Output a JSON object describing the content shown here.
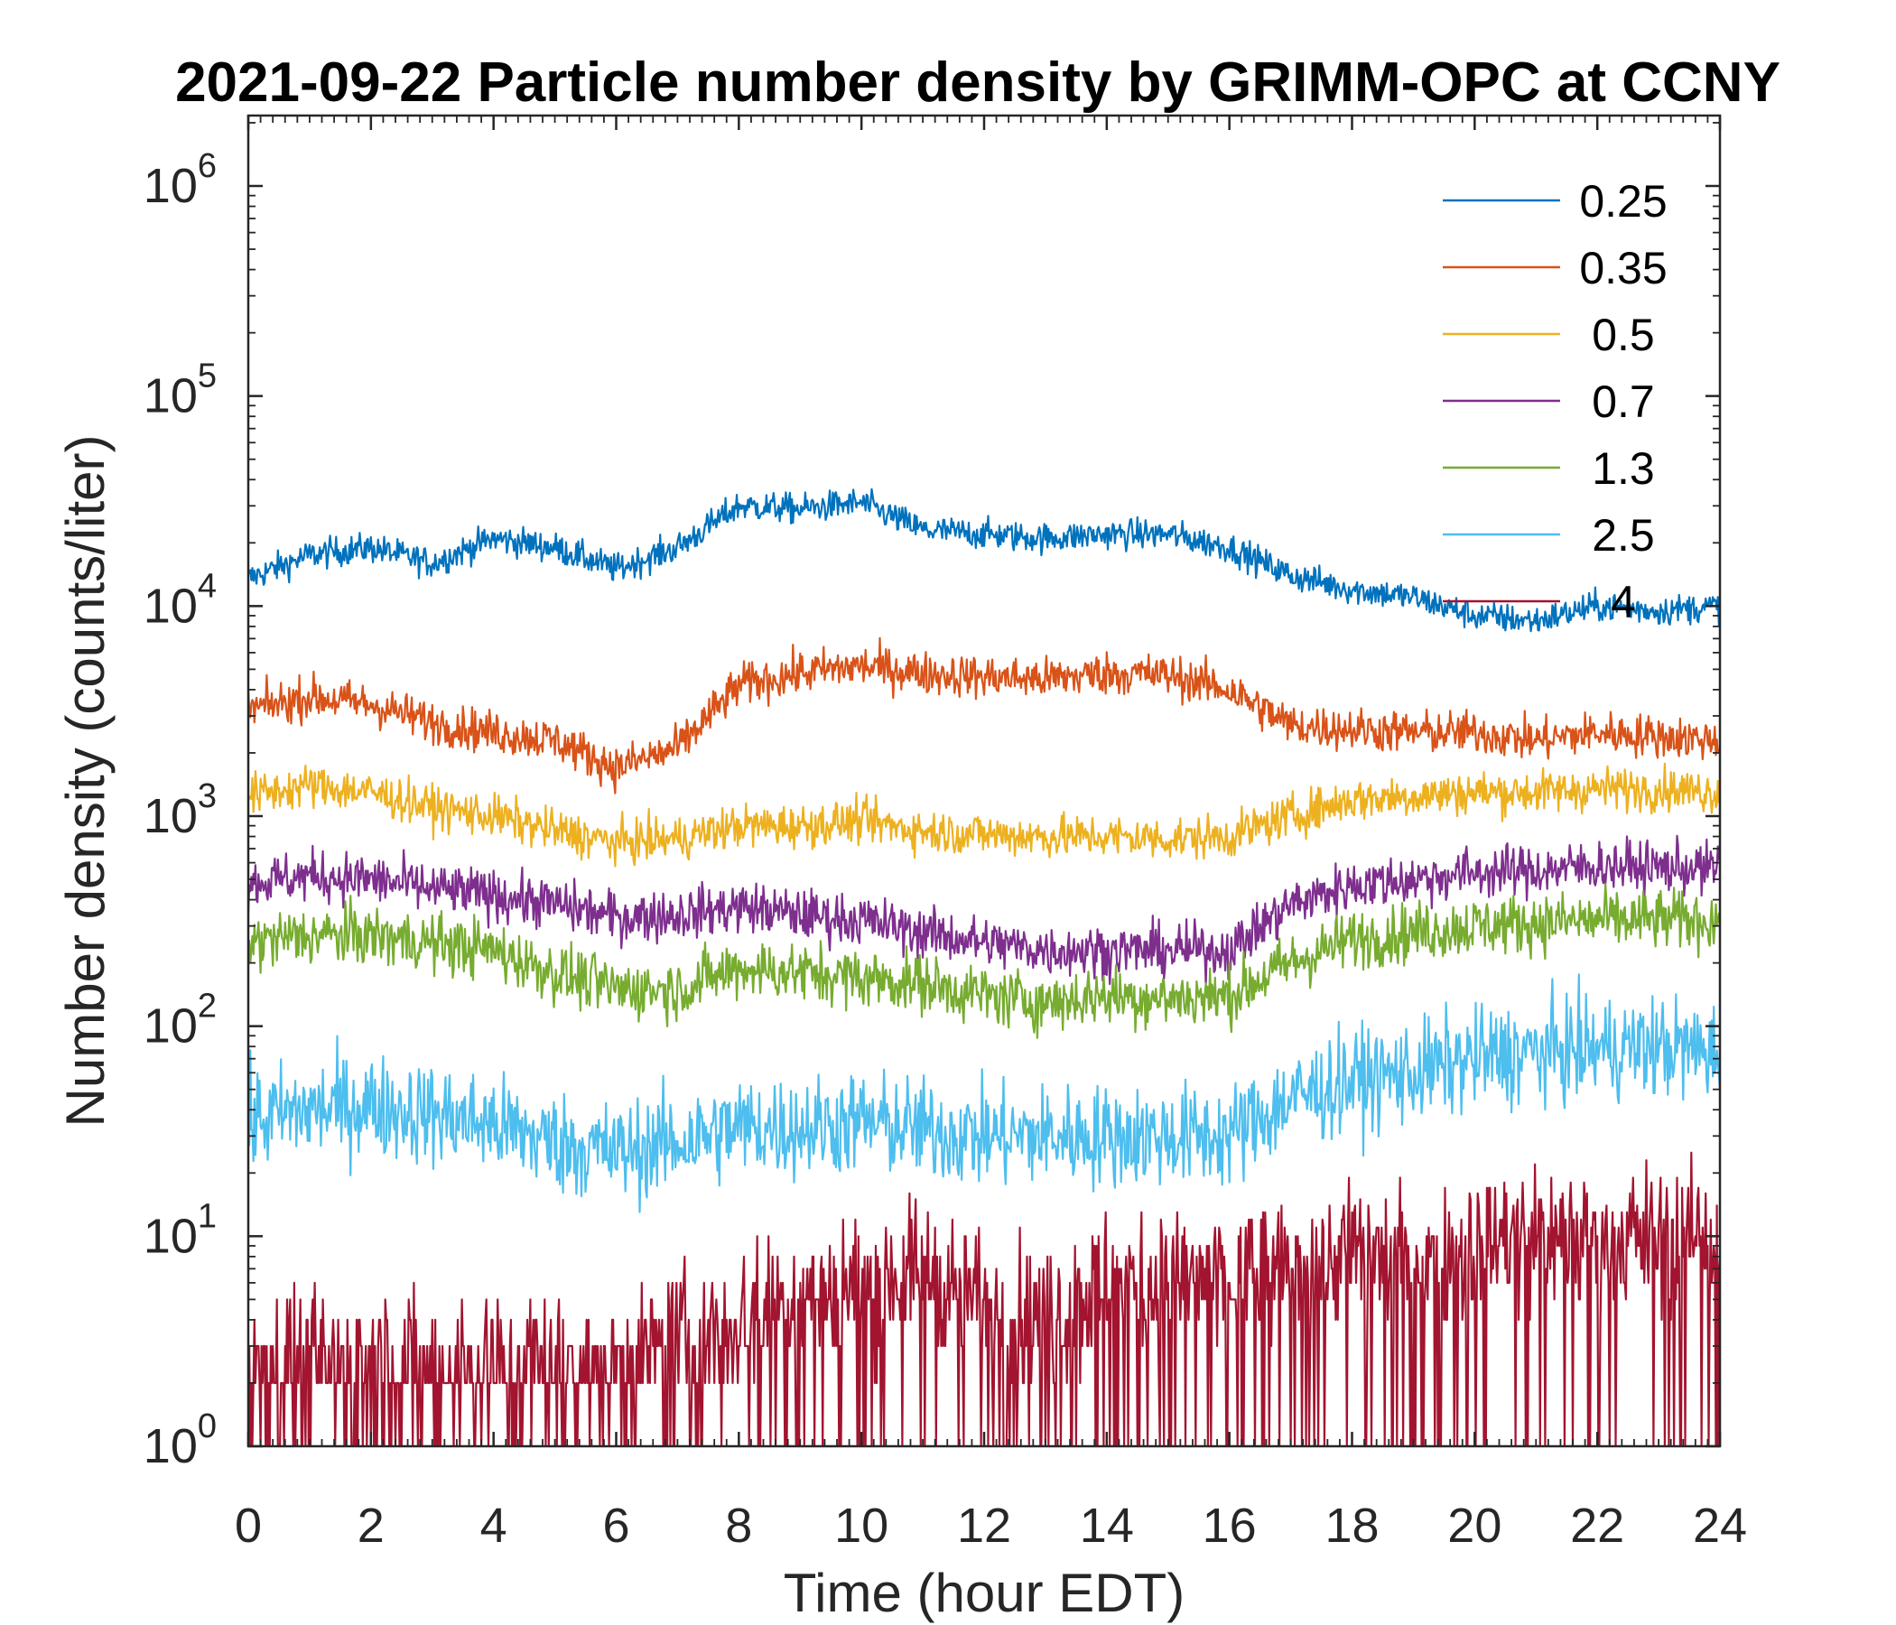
{
  "chart_data": {
    "type": "line",
    "title": "2021-09-22 Particle number density by GRIMM-OPC at CCNY",
    "xlabel": "Time (hour EDT)",
    "ylabel": "Number density (counts/liter)",
    "xlim": [
      0,
      24
    ],
    "ylim": [
      1,
      2000000
    ],
    "yscale": "log",
    "grid": false,
    "legend_position": "top-right",
    "x_ticks": [
      0,
      2,
      4,
      6,
      8,
      10,
      12,
      14,
      16,
      18,
      20,
      22,
      24
    ],
    "x_tick_labels": [
      "0",
      "2",
      "4",
      "6",
      "8",
      "10",
      "12",
      "14",
      "16",
      "18",
      "20",
      "22",
      "24"
    ],
    "y_ticks": [
      1,
      10,
      100,
      1000,
      10000,
      100000,
      1000000
    ],
    "y_tick_labels": [
      {
        "base": "10",
        "exp": "0"
      },
      {
        "base": "10",
        "exp": "1"
      },
      {
        "base": "10",
        "exp": "2"
      },
      {
        "base": "10",
        "exp": "3"
      },
      {
        "base": "10",
        "exp": "4"
      },
      {
        "base": "10",
        "exp": "5"
      },
      {
        "base": "10",
        "exp": "6"
      }
    ],
    "x": [
      0,
      1,
      2,
      3,
      4,
      5,
      6,
      7,
      8,
      9,
      10,
      11,
      12,
      13,
      14,
      15,
      16,
      17,
      18,
      19,
      20,
      21,
      22,
      23,
      24
    ],
    "series": [
      {
        "name": "0.25",
        "color": "#0072BD",
        "values": [
          13500,
          17500,
          19000,
          16000,
          21000,
          19000,
          15000,
          19000,
          30000,
          29000,
          31000,
          23000,
          22000,
          21000,
          22000,
          22000,
          19000,
          14000,
          12000,
          11000,
          9000,
          8500,
          10000,
          9500,
          10000
        ]
      },
      {
        "name": "0.35",
        "color": "#D95319",
        "values": [
          3200,
          3700,
          3400,
          2800,
          2500,
          2300,
          1700,
          2100,
          4200,
          4800,
          5200,
          4800,
          4600,
          4500,
          4800,
          4700,
          4000,
          2700,
          2600,
          2500,
          2500,
          2300,
          2500,
          2400,
          2300
        ]
      },
      {
        "name": "0.5",
        "color": "#EDB120",
        "values": [
          1250,
          1400,
          1300,
          1100,
          1000,
          850,
          750,
          780,
          900,
          900,
          950,
          850,
          820,
          800,
          800,
          780,
          800,
          1000,
          1200,
          1250,
          1300,
          1300,
          1350,
          1350,
          1300
        ]
      },
      {
        "name": "0.7",
        "color": "#7E2F8E",
        "values": [
          480,
          520,
          500,
          450,
          420,
          380,
          330,
          340,
          370,
          340,
          320,
          280,
          250,
          230,
          230,
          230,
          230,
          380,
          470,
          500,
          540,
          550,
          580,
          570,
          560
        ]
      },
      {
        "name": "1.3",
        "color": "#77AC30",
        "values": [
          250,
          270,
          270,
          250,
          230,
          180,
          150,
          150,
          190,
          180,
          170,
          160,
          140,
          130,
          140,
          135,
          140,
          200,
          260,
          280,
          300,
          310,
          320,
          320,
          320
        ]
      },
      {
        "name": "2.5",
        "color": "#4DBEEE",
        "values": [
          35,
          40,
          42,
          38,
          34,
          28,
          25,
          28,
          33,
          33,
          35,
          32,
          30,
          30,
          30,
          30,
          30,
          45,
          55,
          60,
          70,
          75,
          78,
          80,
          75
        ]
      },
      {
        "name": "4",
        "color": "#A2142F",
        "values": [
          2.5,
          2.5,
          2.5,
          2.5,
          2.5,
          2.5,
          2.5,
          3,
          4,
          5,
          6,
          7,
          5,
          4,
          6,
          6,
          6,
          7,
          8,
          8,
          9,
          10,
          10,
          10,
          10
        ]
      }
    ]
  }
}
